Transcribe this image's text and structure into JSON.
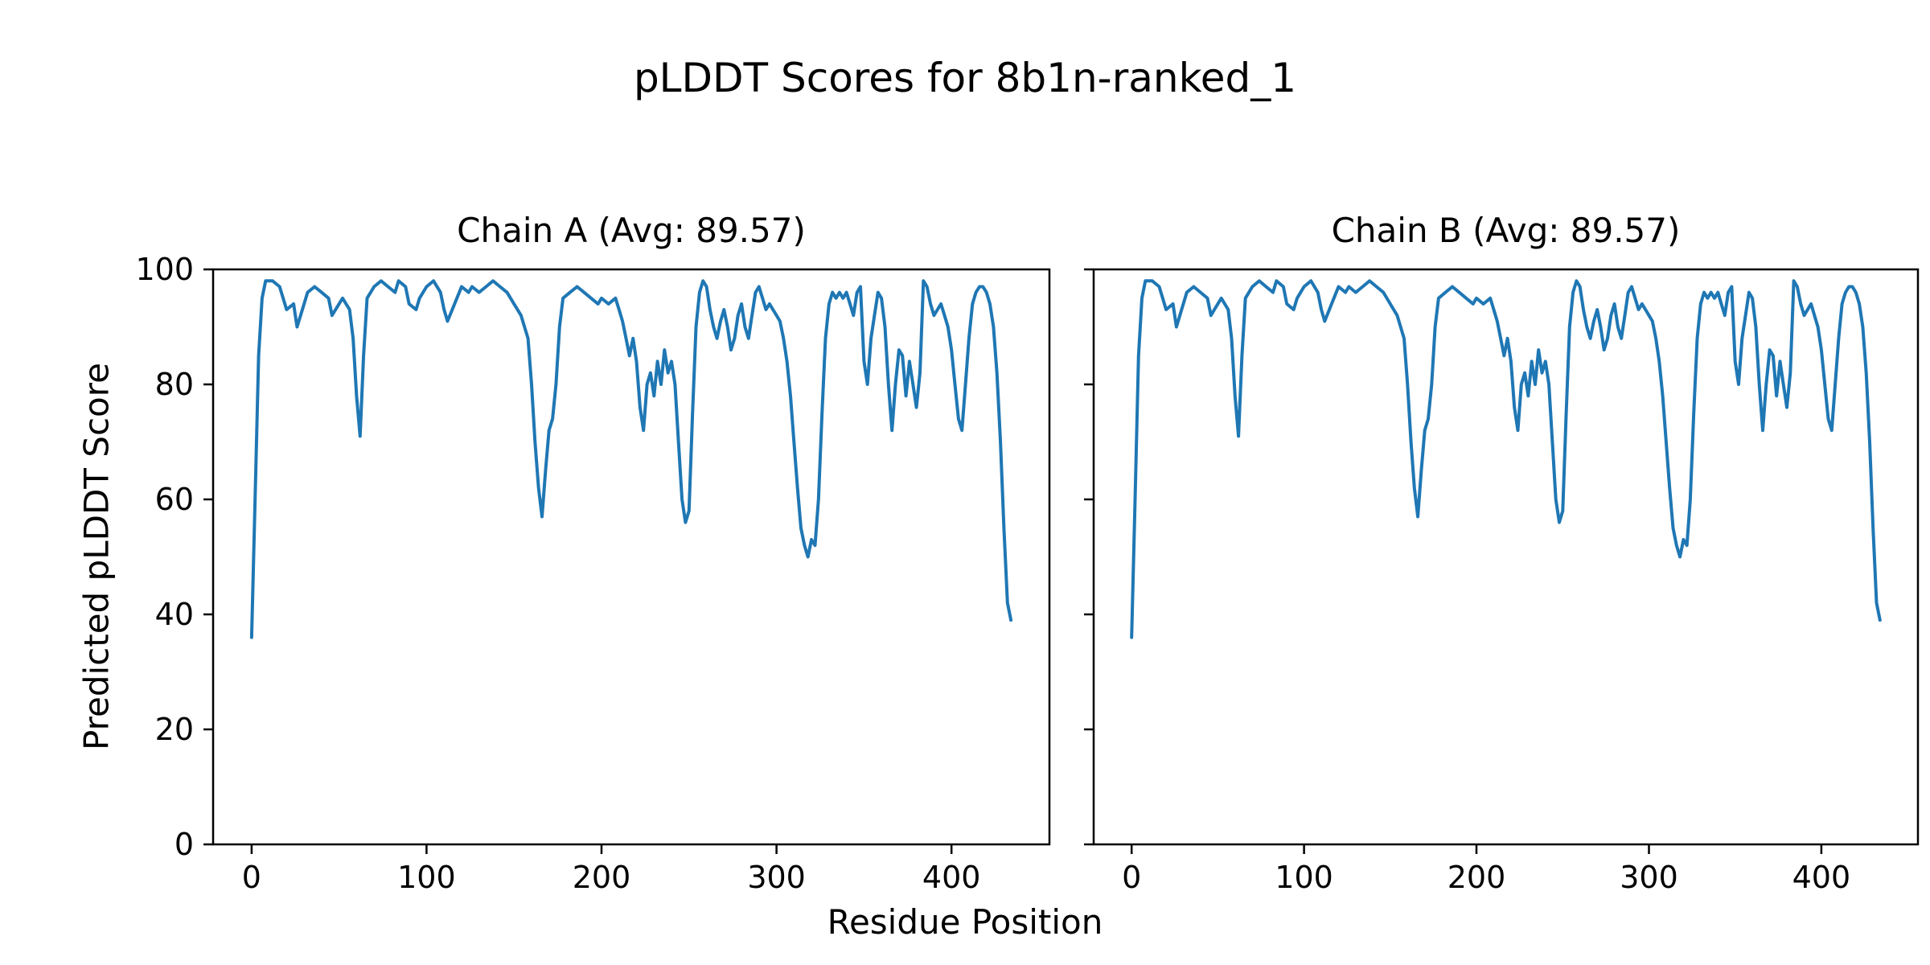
{
  "chart_data": {
    "type": "line",
    "suptitle": "pLDDT Scores for 8b1n-ranked_1",
    "xlabel": "Residue Position",
    "ylabel": "Predicted pLDDT Score",
    "line_color": "#1f77b4",
    "grid": false,
    "legend": "none",
    "xlim": [
      -22,
      456
    ],
    "ylim": [
      0,
      100
    ],
    "xticks": [
      0,
      100,
      200,
      300,
      400
    ],
    "yticks": [
      0,
      20,
      40,
      60,
      80,
      100
    ],
    "subplots": [
      {
        "title": "Chain A (Avg: 89.57)",
        "chain": "A",
        "avg": 89.57,
        "show_ytick_labels": true
      },
      {
        "title": "Chain B (Avg: 89.57)",
        "chain": "B",
        "avg": 89.57,
        "show_ytick_labels": false
      }
    ],
    "x": [
      0,
      2,
      4,
      6,
      8,
      12,
      16,
      20,
      24,
      26,
      28,
      32,
      36,
      40,
      44,
      46,
      48,
      52,
      56,
      58,
      60,
      62,
      64,
      66,
      70,
      74,
      78,
      82,
      84,
      88,
      90,
      94,
      96,
      100,
      104,
      108,
      110,
      112,
      116,
      120,
      124,
      126,
      130,
      134,
      138,
      142,
      146,
      150,
      154,
      158,
      160,
      162,
      164,
      166,
      168,
      170,
      172,
      174,
      176,
      178,
      182,
      186,
      190,
      194,
      198,
      200,
      204,
      208,
      210,
      212,
      214,
      216,
      218,
      220,
      222,
      224,
      226,
      228,
      230,
      232,
      234,
      236,
      238,
      240,
      242,
      244,
      246,
      248,
      250,
      252,
      254,
      256,
      258,
      260,
      262,
      264,
      266,
      268,
      270,
      272,
      274,
      276,
      278,
      280,
      282,
      284,
      286,
      288,
      290,
      292,
      294,
      296,
      298,
      300,
      302,
      304,
      306,
      308,
      310,
      312,
      314,
      316,
      318,
      320,
      322,
      324,
      326,
      328,
      330,
      332,
      334,
      336,
      338,
      340,
      342,
      344,
      346,
      348,
      350,
      352,
      354,
      356,
      358,
      360,
      362,
      364,
      366,
      368,
      370,
      372,
      374,
      376,
      378,
      380,
      382,
      384,
      386,
      388,
      390,
      392,
      394,
      396,
      398,
      400,
      402,
      404,
      406,
      408,
      410,
      412,
      414,
      416,
      418,
      420,
      422,
      424,
      426,
      428,
      430,
      432,
      434
    ],
    "y": [
      36,
      60,
      85,
      95,
      98,
      98,
      97,
      93,
      94,
      90,
      92,
      96,
      97,
      96,
      95,
      92,
      93,
      95,
      93,
      88,
      78,
      71,
      85,
      95,
      97,
      98,
      97,
      96,
      98,
      97,
      94,
      93,
      95,
      97,
      98,
      96,
      93,
      91,
      94,
      97,
      96,
      97,
      96,
      97,
      98,
      97,
      96,
      94,
      92,
      88,
      80,
      70,
      62,
      57,
      65,
      72,
      74,
      80,
      90,
      95,
      96,
      97,
      96,
      95,
      94,
      95,
      94,
      95,
      93,
      91,
      88,
      85,
      88,
      84,
      76,
      72,
      80,
      82,
      78,
      84,
      80,
      86,
      82,
      84,
      80,
      70,
      60,
      56,
      58,
      75,
      90,
      96,
      98,
      97,
      93,
      90,
      88,
      91,
      93,
      90,
      86,
      88,
      92,
      94,
      90,
      88,
      92,
      96,
      97,
      95,
      93,
      94,
      93,
      92,
      91,
      88,
      84,
      78,
      70,
      62,
      55,
      52,
      50,
      53,
      52,
      60,
      75,
      88,
      94,
      96,
      95,
      96,
      95,
      96,
      94,
      92,
      96,
      97,
      84,
      80,
      88,
      92,
      96,
      95,
      90,
      80,
      72,
      80,
      86,
      85,
      78,
      84,
      80,
      76,
      82,
      98,
      97,
      94,
      92,
      93,
      94,
      92,
      90,
      86,
      80,
      74,
      72,
      80,
      88,
      94,
      96,
      97,
      97,
      96,
      94,
      90,
      82,
      70,
      55,
      42,
      39
    ]
  }
}
